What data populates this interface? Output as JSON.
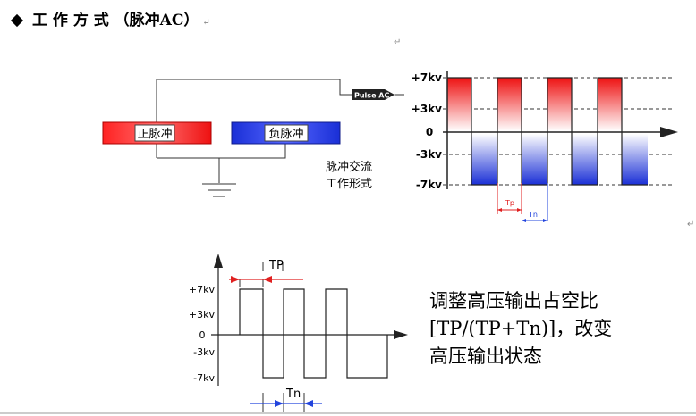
{
  "title": "工 作 方 式 （脉冲AC）",
  "paragraph_mark": "↵",
  "schematic": {
    "pos_pulse_label": "正脉冲",
    "neg_pulse_label": "负脉冲",
    "source_label": "Pulse AC",
    "caption_line1": "脉冲交流",
    "caption_line2": "工作形式"
  },
  "waveform_top": {
    "y_labels": [
      "+7kv",
      "+3kv",
      "0",
      "-3kv",
      "-7kv"
    ],
    "tp_label": "Tp",
    "tn_label": "Tn"
  },
  "waveform_bottom": {
    "y_labels": [
      "+7kv",
      "+3kv",
      "0",
      "-3kv",
      "-7kv"
    ],
    "tp_label": "TP",
    "tn_label": "Tn"
  },
  "description": {
    "line1": "调整高压输出占空比",
    "line2": "[TP/(TP+Tn)]，改变",
    "line3": "高压输出状态"
  },
  "colors": {
    "positive": "#ee1111",
    "negative": "#1a2fd6",
    "dimension": "#e02020",
    "dimension_blue": "#2244dd"
  }
}
